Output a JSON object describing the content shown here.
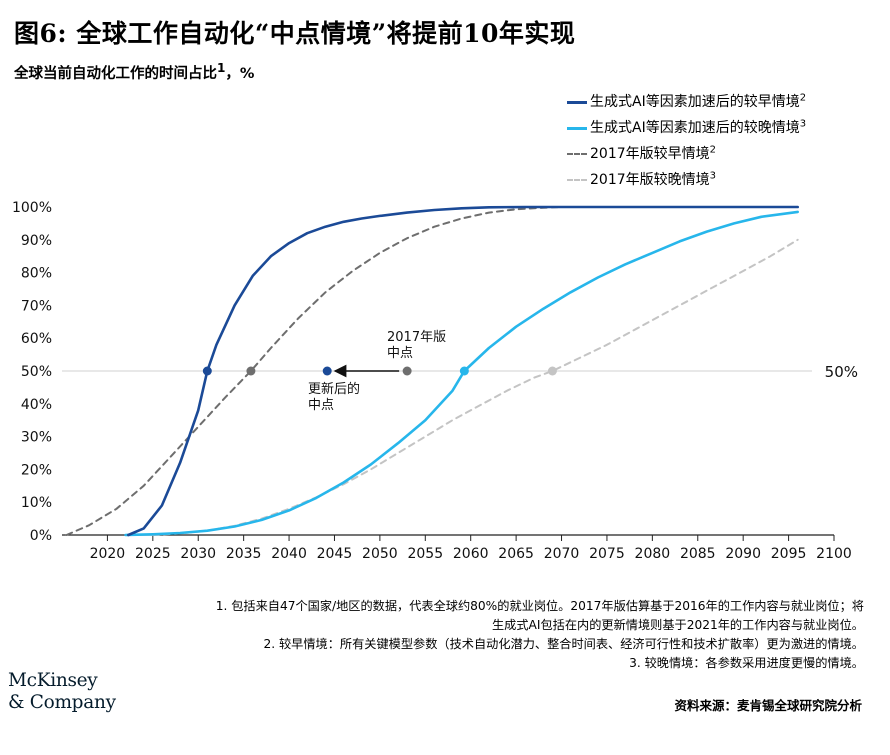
{
  "title": "图6: 全球工作自动化“中点情境”将提前10年实现",
  "subtitle": "全球当前自动化工作的时间占比",
  "subtitle_sup": "1",
  "subtitle_unit": "，%",
  "legend": [
    {
      "label": "生成式AI等因素加速后的较早情境",
      "sup": "2",
      "color": "#1b4a97",
      "style": "solid"
    },
    {
      "label": "生成式AI等因素加速后的较晚情境",
      "sup": "3",
      "color": "#27b6eb",
      "style": "solid"
    },
    {
      "label": "2017年版较早情境",
      "sup": "2",
      "color": "#6e6e6e",
      "style": "dashed"
    },
    {
      "label": "2017年版较晚情境",
      "sup": "3",
      "color": "#c4c4c4",
      "style": "dashed"
    }
  ],
  "chart_data": {
    "type": "line",
    "xlim": [
      2015,
      2100
    ],
    "ylim": [
      0,
      100
    ],
    "x_ticks": [
      2020,
      2025,
      2030,
      2035,
      2040,
      2045,
      2050,
      2055,
      2060,
      2065,
      2070,
      2075,
      2080,
      2085,
      2090,
      2095,
      2100
    ],
    "y_ticks": [
      "0%",
      "10%",
      "20%",
      "30%",
      "40%",
      "50%",
      "60%",
      "70%",
      "80%",
      "90%",
      "100%"
    ],
    "reference_line": {
      "y": 50,
      "label": "50%"
    },
    "series": [
      {
        "name": "生成式AI等因素加速后的较早情境",
        "color": "#1b4a97",
        "dash": false,
        "width": 2.6,
        "x": [
          2022.3,
          2024,
          2026,
          2028,
          2030,
          2031,
          2032,
          2034,
          2036,
          2038,
          2040,
          2042,
          2044,
          2046,
          2048,
          2050,
          2053,
          2056,
          2059,
          2062,
          2066,
          2070,
          2080,
          2090,
          2096
        ],
        "y": [
          0,
          2,
          9,
          22,
          38,
          50,
          58,
          70,
          79,
          85,
          89,
          92,
          94,
          95.5,
          96.5,
          97.3,
          98.3,
          99.1,
          99.6,
          99.9,
          100,
          100,
          100,
          100,
          100
        ]
      },
      {
        "name": "生成式AI等因素加速后的较晚情境",
        "color": "#27b6eb",
        "dash": false,
        "width": 2.6,
        "x": [
          2022,
          2025,
          2028,
          2031,
          2034,
          2037,
          2040,
          2043,
          2046,
          2049,
          2052,
          2055,
          2058,
          2059.3,
          2062,
          2065,
          2068,
          2071,
          2074,
          2077,
          2080,
          2083,
          2086,
          2089,
          2092,
          2096
        ],
        "y": [
          0,
          0.2,
          0.6,
          1.3,
          2.6,
          4.6,
          7.5,
          11.3,
          16,
          21.5,
          28,
          35,
          44,
          50,
          57,
          63.5,
          69,
          74,
          78.5,
          82.5,
          86,
          89.5,
          92.5,
          95,
          97,
          98.5
        ]
      },
      {
        "name": "2017年版较早情境",
        "color": "#6e6e6e",
        "dash": true,
        "width": 2,
        "x": [
          2015.5,
          2018,
          2021,
          2024,
          2027,
          2030,
          2033,
          2035.8,
          2038,
          2041,
          2044,
          2047,
          2050,
          2053,
          2056,
          2059,
          2062,
          2065,
          2068,
          2070,
          2080,
          2090,
          2096
        ],
        "y": [
          0,
          3,
          8,
          15,
          24,
          33,
          42,
          50,
          57,
          66,
          74,
          80.5,
          86,
          90.5,
          94,
          96.5,
          98.3,
          99.3,
          99.8,
          100,
          100,
          100,
          100
        ]
      },
      {
        "name": "2017年版较晚情境",
        "color": "#c4c4c4",
        "dash": true,
        "width": 2,
        "x": [
          2025,
          2028,
          2031,
          2034,
          2037,
          2040,
          2043,
          2046,
          2049,
          2052,
          2055,
          2058,
          2061,
          2064,
          2067,
          2069,
          2072,
          2075,
          2078,
          2081,
          2084,
          2087,
          2090,
          2093,
          2096
        ],
        "y": [
          0,
          0.5,
          1.3,
          2.8,
          5,
          8,
          11.5,
          15.5,
          20,
          25,
          30,
          35,
          39.5,
          44,
          48,
          50,
          54,
          58,
          62.5,
          67,
          71.5,
          76,
          80.5,
          85,
          90
        ]
      }
    ],
    "midpoints": [
      {
        "x": 2031,
        "y": 50,
        "color": "#1b4a97"
      },
      {
        "x": 2035.8,
        "y": 50,
        "color": "#6e6e6e"
      },
      {
        "x": 2044.2,
        "y": 50,
        "color": "#1b4a97"
      },
      {
        "x": 2053,
        "y": 50,
        "color": "#6e6e6e"
      },
      {
        "x": 2059.3,
        "y": 50,
        "color": "#27b6eb"
      },
      {
        "x": 2069,
        "y": 50,
        "color": "#c4c4c4"
      }
    ],
    "annotations": {
      "old_midpoint": [
        "2017年版",
        "中点"
      ],
      "new_midpoint": [
        "更新后的",
        "中点"
      ]
    }
  },
  "notes": [
    "1.  包括来自47个国家/地区的数据，代表全球约80%的就业岗位。2017年版估算基于2016年的工作内容与就业岗位；将生成式AI包括在内的更新情境则基于2021年的工作内容与就业岗位。",
    "2.  较早情境：所有关键模型参数（技术自动化潜力、整合时间表、经济可行性和技术扩散率）更为激进的情境。",
    "3.  较晚情境：各参数采用进度更慢的情境。"
  ],
  "source": "资料来源：麦肯锡全球研究院分析",
  "logo": [
    "McKinsey",
    "& Company"
  ]
}
